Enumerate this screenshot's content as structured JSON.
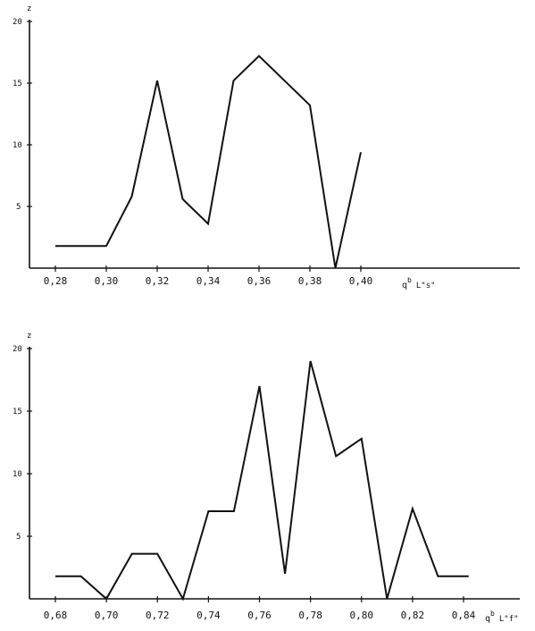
{
  "chart_data": [
    {
      "type": "line",
      "ylabel": "z",
      "xlabel_main": "q",
      "xlabel_sup": "b",
      "xlabel_suffix": "L\"s\"",
      "x_ticks": [
        "0,28",
        "0,30",
        "0,32",
        "0,34",
        "0,36",
        "0,38",
        "0,40"
      ],
      "x_tick_values": [
        0.28,
        0.3,
        0.32,
        0.34,
        0.36,
        0.38,
        0.4
      ],
      "y_ticks": [
        "5",
        "10",
        "15",
        "20"
      ],
      "y_tick_values": [
        5,
        10,
        15,
        20
      ],
      "xlim": [
        0.275,
        0.465
      ],
      "ylim": [
        0,
        20
      ],
      "segments": [
        [
          {
            "x": 0.28,
            "y": 1.8
          },
          {
            "x": 0.3,
            "y": 1.8
          },
          {
            "x": 0.31,
            "y": 5.8
          },
          {
            "x": 0.32,
            "y": 15.2
          },
          {
            "x": 0.33,
            "y": 5.6
          },
          {
            "x": 0.34,
            "y": 3.6
          },
          {
            "x": 0.35,
            "y": 15.2
          },
          {
            "x": 0.36,
            "y": 17.2
          },
          {
            "x": 0.37,
            "y": 15.2
          },
          {
            "x": 0.38,
            "y": 13.2
          },
          {
            "x": 0.39,
            "y": 0.0
          },
          {
            "x": 0.4,
            "y": 9.4
          }
        ]
      ]
    },
    {
      "type": "line",
      "ylabel": "z",
      "xlabel_main": "q",
      "xlabel_sup": "b",
      "xlabel_suffix": "L\"f\"",
      "x_ticks": [
        "0,68",
        "0,70",
        "0,72",
        "0,74",
        "0,76",
        "0,78",
        "0,80",
        "0,82",
        "0,84"
      ],
      "x_tick_values": [
        0.68,
        0.7,
        0.72,
        0.74,
        0.76,
        0.78,
        0.8,
        0.82,
        0.84
      ],
      "y_ticks": [
        "5",
        "10",
        "15",
        "20"
      ],
      "y_tick_values": [
        5,
        10,
        15,
        20
      ],
      "xlim": [
        0.675,
        0.862
      ],
      "ylim": [
        0,
        20
      ],
      "segments": [
        [
          {
            "x": 0.68,
            "y": 1.8
          },
          {
            "x": 0.69,
            "y": 1.8
          },
          {
            "x": 0.7,
            "y": 0.0
          },
          {
            "x": 0.71,
            "y": 3.6
          },
          {
            "x": 0.72,
            "y": 3.6
          },
          {
            "x": 0.73,
            "y": 0.0
          },
          {
            "x": 0.74,
            "y": 7.0
          },
          {
            "x": 0.75,
            "y": 7.0
          },
          {
            "x": 0.76,
            "y": 17.0
          },
          {
            "x": 0.77,
            "y": 2.0
          },
          {
            "x": 0.78,
            "y": 19.0
          },
          {
            "x": 0.79,
            "y": 11.4
          },
          {
            "x": 0.8,
            "y": 12.8
          },
          {
            "x": 0.81,
            "y": 0.0
          },
          {
            "x": 0.82,
            "y": 7.2
          },
          {
            "x": 0.83,
            "y": 1.8
          },
          {
            "x": 0.842,
            "y": 1.8
          }
        ]
      ]
    }
  ]
}
